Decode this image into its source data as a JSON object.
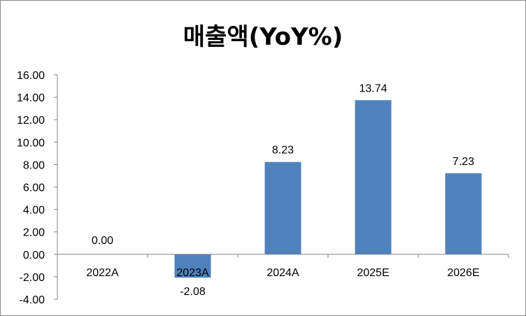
{
  "chart_data": {
    "type": "bar",
    "title": "매출액(YoY%)",
    "xlabel": "",
    "ylabel": "",
    "categories": [
      "2022A",
      "2023A",
      "2024A",
      "2025E",
      "2026E"
    ],
    "values": [
      0.0,
      -2.08,
      8.23,
      13.74,
      7.23
    ],
    "data_labels": [
      "0.00",
      "-2.08",
      "8.23",
      "13.74",
      "7.23"
    ],
    "ylim": [
      -4,
      16
    ],
    "yticks": [
      -4,
      -2,
      0,
      2,
      4,
      6,
      8,
      10,
      12,
      14,
      16
    ],
    "ytick_labels": [
      "-4.00",
      "-2.00",
      "0.00",
      "2.00",
      "4.00",
      "6.00",
      "8.00",
      "10.00",
      "12.00",
      "14.00",
      "16.00"
    ],
    "bar_color": "#4f81bd",
    "grid": false,
    "legend": "none"
  }
}
